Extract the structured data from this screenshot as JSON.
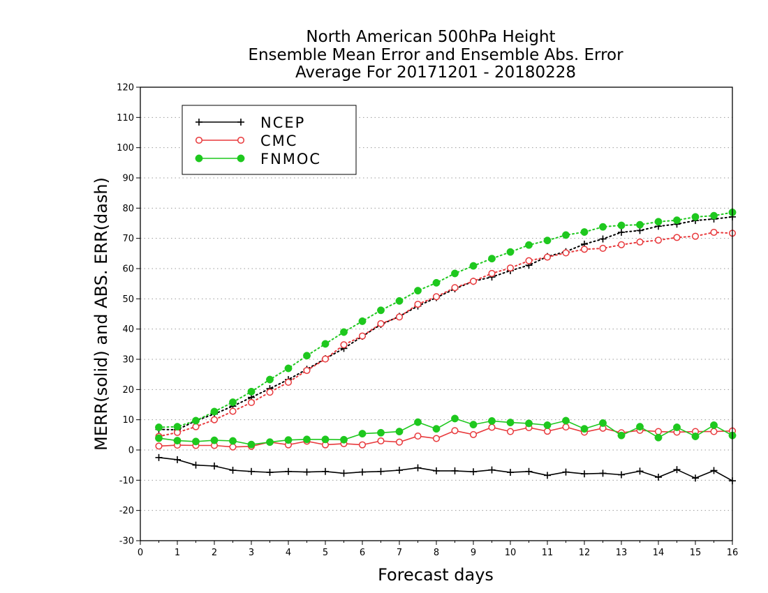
{
  "chart_data": {
    "type": "line",
    "title_lines": [
      "North American 500hPa Height",
      "Ensemble Mean Error and Ensemble Abs. Error",
      "Average For 20171201 - 20180228"
    ],
    "xlabel": "Forecast days",
    "ylabel": "MERR(solid) and ABS. ERR(dash)",
    "xlim": [
      0,
      16
    ],
    "ylim": [
      -30,
      120
    ],
    "x_ticks": [
      "0",
      "1",
      "2",
      "3",
      "4",
      "5",
      "6",
      "7",
      "8",
      "9",
      "10",
      "11",
      "12",
      "13",
      "14",
      "15",
      "16"
    ],
    "y_ticks": [
      "-30",
      "-20",
      "-10",
      "0",
      "10",
      "20",
      "30",
      "40",
      "50",
      "60",
      "70",
      "80",
      "90",
      "100",
      "110",
      "120"
    ],
    "grid": "horizontal dotted",
    "legend_position": "top-left",
    "x": [
      0.5,
      1,
      1.5,
      2,
      2.5,
      3,
      3.5,
      4,
      4.5,
      5,
      5.5,
      6,
      6.5,
      7,
      7.5,
      8,
      8.5,
      9,
      9.5,
      10,
      10.5,
      11,
      11.5,
      12,
      12.5,
      13,
      13.5,
      14,
      14.5,
      15,
      15.5,
      16
    ],
    "series": [
      {
        "name": "NCEP",
        "color": "#000000",
        "marker": "plus",
        "merr": [
          -2.5,
          -3.2,
          -5,
          -5.3,
          -6.7,
          -7.1,
          -7.4,
          -7.1,
          -7.3,
          -7.1,
          -7.7,
          -7.3,
          -7.1,
          -6.7,
          -5.9,
          -6.9,
          -6.9,
          -7.2,
          -6.6,
          -7.4,
          -7.1,
          -8.4,
          -7.3,
          -7.9,
          -7.7,
          -8.2,
          -7,
          -9,
          -6.5,
          -9.3,
          -6.8,
          -10.2
        ],
        "abs_err": [
          6.8,
          6.7,
          9.7,
          11.9,
          14.5,
          17.4,
          20.3,
          23.3,
          26.7,
          30.2,
          33.6,
          37.6,
          41.5,
          44.2,
          47.6,
          50.4,
          53.3,
          55.8,
          57.2,
          59.3,
          61.1,
          64,
          65.6,
          68.1,
          69.8,
          72,
          72.6,
          74,
          74.7,
          75.9,
          76.4,
          77.1
        ]
      },
      {
        "name": "CMC",
        "color": "#e8393c",
        "marker": "open-circle",
        "merr": [
          1.3,
          1.6,
          1.5,
          1.5,
          1,
          1.2,
          2.6,
          1.7,
          2.9,
          1.7,
          2.1,
          1.7,
          3,
          2.6,
          4.6,
          3.8,
          6.4,
          5.1,
          7.5,
          6.1,
          7.4,
          6.2,
          7.6,
          5.9,
          7.2,
          5.7,
          6.5,
          6.1,
          5.9,
          6.1,
          6.1,
          6.3
        ],
        "abs_err": [
          4.5,
          5.8,
          7.7,
          10,
          12.8,
          15.7,
          19.1,
          22.4,
          26.3,
          30.1,
          34.8,
          37.7,
          41.8,
          44,
          48.2,
          50.7,
          53.7,
          55.8,
          58.4,
          60.2,
          62.6,
          63.8,
          65.2,
          66.4,
          66.7,
          67.9,
          68.8,
          69.4,
          70.3,
          70.7,
          72,
          71.7
        ]
      },
      {
        "name": "FNMOC",
        "color": "#1ec81e",
        "marker": "filled-circle",
        "merr": [
          3.9,
          3.1,
          2.8,
          3.2,
          3,
          1.8,
          2.6,
          3.3,
          3.5,
          3.5,
          3.4,
          5.4,
          5.7,
          6.1,
          9.2,
          7,
          10.4,
          8.4,
          9.6,
          9.1,
          8.8,
          8.2,
          9.7,
          7,
          8.9,
          4.8,
          7.7,
          4.1,
          7.5,
          4.5,
          8.2,
          4.8
        ],
        "abs_err": [
          7.5,
          7.7,
          9.7,
          12.7,
          15.8,
          19.3,
          23.3,
          27,
          31.2,
          35.1,
          39,
          42.6,
          46.2,
          49.3,
          52.7,
          55.3,
          58.4,
          60.9,
          63.3,
          65.5,
          67.8,
          69.3,
          71.1,
          72.1,
          73.8,
          74.3,
          74.5,
          75.5,
          76,
          77.1,
          77.5,
          78.6
        ]
      }
    ]
  }
}
